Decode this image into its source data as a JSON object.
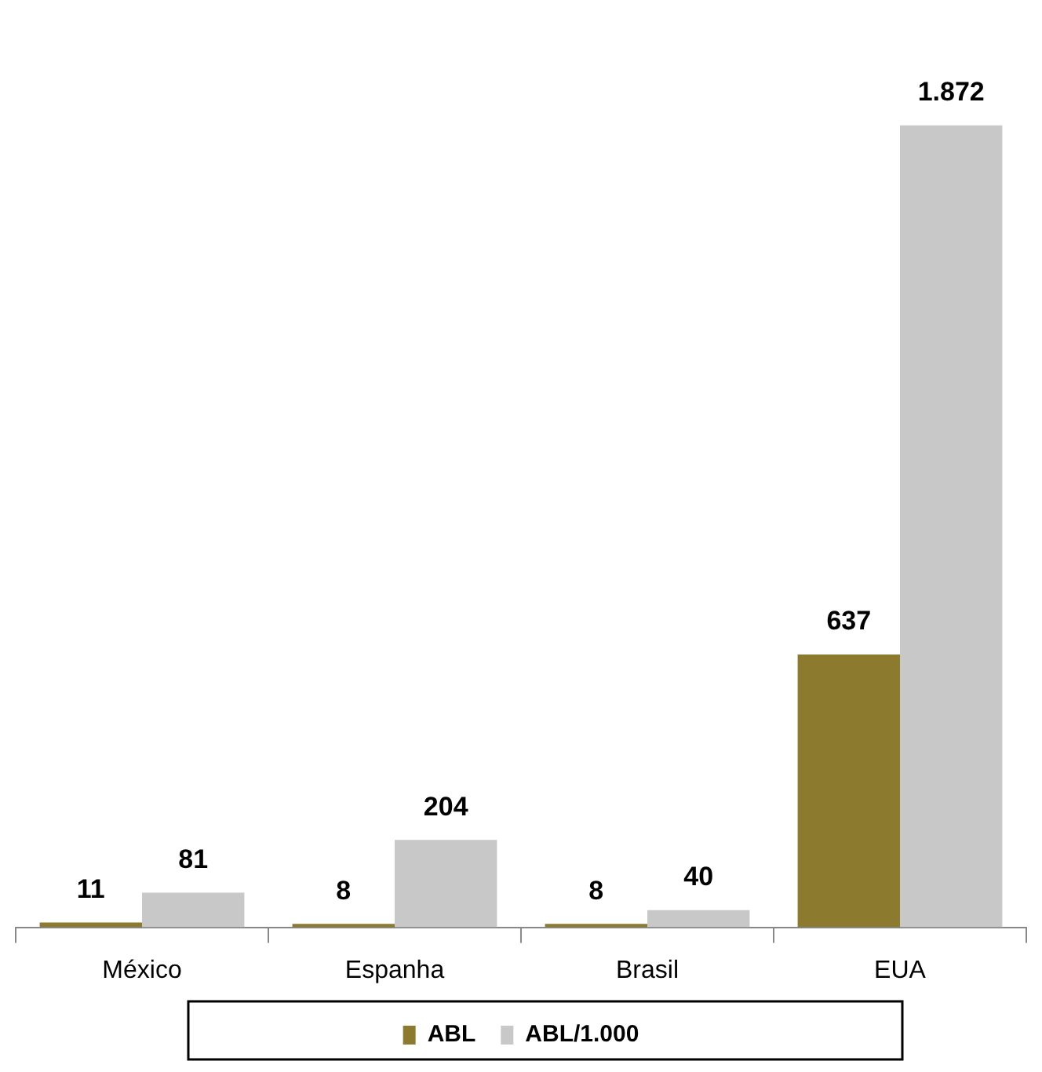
{
  "chart_data": {
    "type": "bar",
    "categories": [
      "México",
      "Espanha",
      "Brasil",
      "EUA"
    ],
    "series": [
      {
        "name": "ABL",
        "color": "#8c7a2e",
        "values": [
          11,
          8,
          8,
          637
        ],
        "value_labels": [
          "11",
          "8",
          "8",
          "637"
        ]
      },
      {
        "name": "ABL/1.000",
        "color": "#c8c8c8",
        "values": [
          81,
          204,
          40,
          1872
        ],
        "value_labels": [
          "81",
          "204",
          "40",
          "1.872"
        ]
      }
    ],
    "legend": "bottom"
  }
}
